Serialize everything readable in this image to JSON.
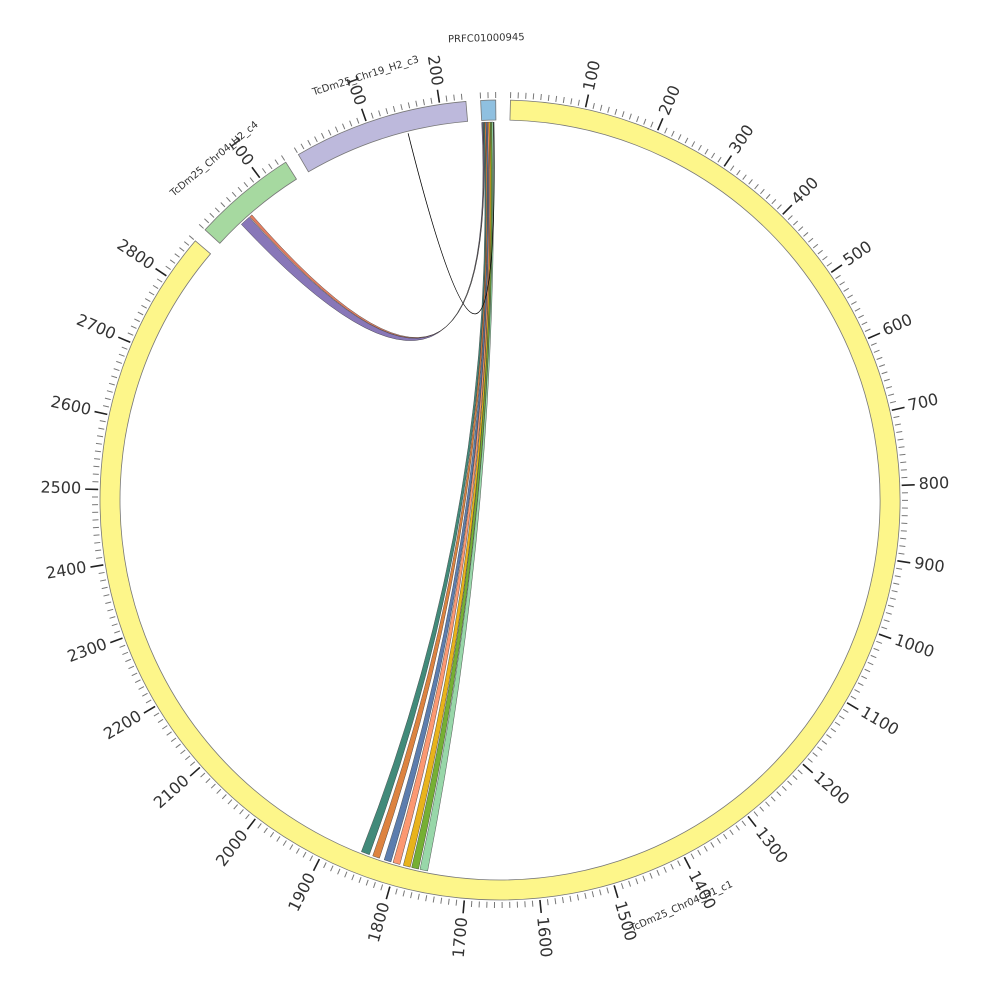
{
  "chart_data": {
    "type": "circos",
    "segments": [
      {
        "name": "TcDm25_Chr04_H1_c1",
        "color": "#fdf68a",
        "length": 2860,
        "ticks": [
          100,
          200,
          300,
          400,
          500,
          600,
          700,
          800,
          900,
          1000,
          1100,
          1200,
          1300,
          1400,
          1500,
          1600,
          1700,
          1800,
          1900,
          2000,
          2100,
          2200,
          2300,
          2400,
          2500,
          2600,
          2700,
          2800
        ]
      },
      {
        "name": "TcDm25_Chr04_H2_c4",
        "color": "#a6d9a0",
        "length": 140,
        "ticks": [
          100
        ]
      },
      {
        "name": "TcDm25_Chr19_H2_c3",
        "color": "#bdb9dc",
        "length": 235,
        "ticks": [
          100,
          200
        ]
      },
      {
        "name": "PRFC01000945",
        "color": "#8fc0e0",
        "length": 20,
        "ticks": []
      }
    ],
    "minor_tick_step": 10,
    "links": [
      {
        "source": {
          "segment": "PRFC01000945",
          "start": 2,
          "end": 4
        },
        "target": {
          "segment": "TcDm25_Chr04_H1_c1",
          "start": 1840,
          "end": 1852
        },
        "color": "#2e7d6b"
      },
      {
        "source": {
          "segment": "PRFC01000945",
          "start": 4,
          "end": 6
        },
        "target": {
          "segment": "TcDm25_Chr04_H1_c1",
          "start": 1825,
          "end": 1835
        },
        "color": "#d9762b"
      },
      {
        "source": {
          "segment": "PRFC01000945",
          "start": 6,
          "end": 8
        },
        "target": {
          "segment": "TcDm25_Chr04_H1_c1",
          "start": 1808,
          "end": 1818
        },
        "color": "#4a6fa5"
      },
      {
        "source": {
          "segment": "PRFC01000945",
          "start": 8,
          "end": 10
        },
        "target": {
          "segment": "TcDm25_Chr04_H1_c1",
          "start": 1795,
          "end": 1805
        },
        "color": "#fc8d62"
      },
      {
        "source": {
          "segment": "PRFC01000945",
          "start": 10,
          "end": 12
        },
        "target": {
          "segment": "TcDm25_Chr04_H1_c1",
          "start": 1780,
          "end": 1790
        },
        "color": "#e6ab02"
      },
      {
        "source": {
          "segment": "PRFC01000945",
          "start": 12,
          "end": 14
        },
        "target": {
          "segment": "TcDm25_Chr04_H1_c1",
          "start": 1768,
          "end": 1778
        },
        "color": "#66a61e"
      },
      {
        "source": {
          "segment": "PRFC01000945",
          "start": 14,
          "end": 16
        },
        "target": {
          "segment": "TcDm25_Chr04_H1_c1",
          "start": 1755,
          "end": 1766
        },
        "color": "#8dd3a0"
      },
      {
        "source": {
          "segment": "PRFC01000945",
          "start": 0,
          "end": 1.5
        },
        "target": {
          "segment": "TcDm25_Chr04_H2_c4",
          "start": 40,
          "end": 55
        },
        "color": "#7b68b0"
      },
      {
        "source": {
          "segment": "PRFC01000945",
          "start": 1.5,
          "end": 2
        },
        "target": {
          "segment": "TcDm25_Chr04_H2_c4",
          "start": 56,
          "end": 60
        },
        "color": "#e07050"
      },
      {
        "source": {
          "segment": "TcDm25_Chr19_H2_c3",
          "start": 150,
          "end": 150
        },
        "target": {
          "segment": "PRFC01000945",
          "start": 17,
          "end": 17
        },
        "color": "#000000"
      }
    ]
  }
}
